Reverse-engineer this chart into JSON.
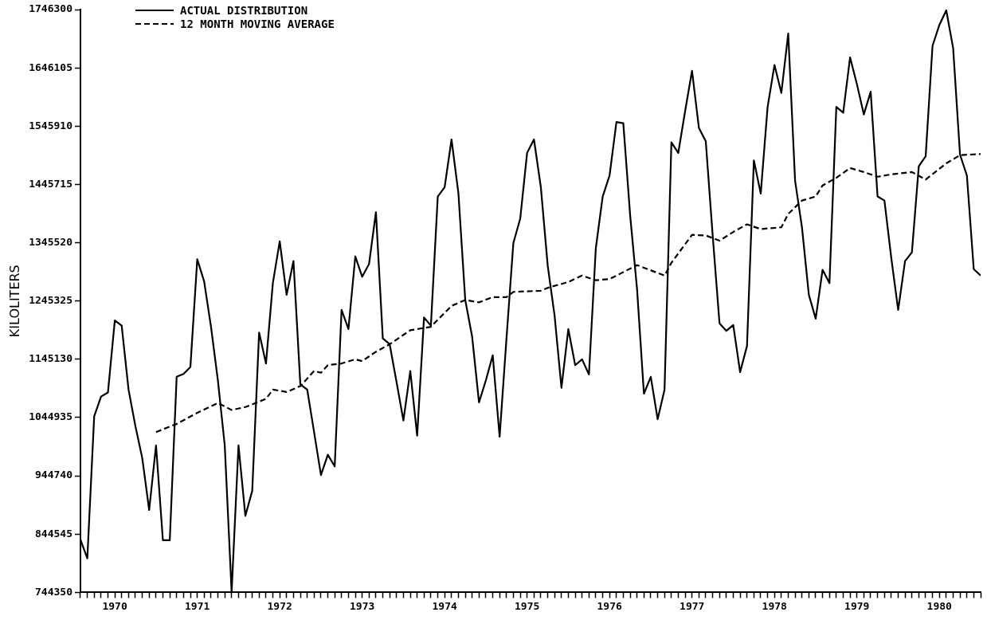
{
  "chart_data": {
    "type": "line",
    "ylabel": "KILOLITERS",
    "marker": "none",
    "grid": false,
    "legend": "top left",
    "xlim": [
      "1970-01",
      "1980-12"
    ],
    "ylim": [
      744350,
      1746300
    ],
    "yticks": [
      744350,
      844545,
      944740,
      1044935,
      1145130,
      1245325,
      1345520,
      1445715,
      1545910,
      1646105,
      1746300
    ],
    "xticks": [
      {
        "value": "1970-01",
        "label": null
      },
      {
        "value": "1970-02",
        "label": null
      },
      {
        "value": "1970-03",
        "label": null
      },
      {
        "value": "1970-04",
        "label": null
      },
      {
        "value": "1970-05",
        "label": null
      },
      {
        "value": "1970-06",
        "label": "1970"
      },
      {
        "value": "1970-07",
        "label": null
      },
      {
        "value": "1970-08",
        "label": null
      },
      {
        "value": "1970-09",
        "label": null
      },
      {
        "value": "1970-10",
        "label": null
      },
      {
        "value": "1970-11",
        "label": null
      },
      {
        "value": "1970-12",
        "label": null
      },
      {
        "value": "1971-01",
        "label": null
      },
      {
        "value": "1971-02",
        "label": null
      },
      {
        "value": "1971-03",
        "label": null
      },
      {
        "value": "1971-04",
        "label": null
      },
      {
        "value": "1971-05",
        "label": null
      },
      {
        "value": "1971-06",
        "label": "1971"
      },
      {
        "value": "1971-07",
        "label": null
      },
      {
        "value": "1971-08",
        "label": null
      },
      {
        "value": "1971-09",
        "label": null
      },
      {
        "value": "1971-10",
        "label": null
      },
      {
        "value": "1971-11",
        "label": null
      },
      {
        "value": "1971-12",
        "label": null
      },
      {
        "value": "1972-01",
        "label": null
      },
      {
        "value": "1972-02",
        "label": null
      },
      {
        "value": "1972-03",
        "label": null
      },
      {
        "value": "1972-04",
        "label": null
      },
      {
        "value": "1972-05",
        "label": null
      },
      {
        "value": "1972-06",
        "label": "1972"
      },
      {
        "value": "1972-07",
        "label": null
      },
      {
        "value": "1972-08",
        "label": null
      },
      {
        "value": "1972-09",
        "label": null
      },
      {
        "value": "1972-10",
        "label": null
      },
      {
        "value": "1972-11",
        "label": null
      },
      {
        "value": "1972-12",
        "label": null
      },
      {
        "value": "1973-01",
        "label": null
      },
      {
        "value": "1973-02",
        "label": null
      },
      {
        "value": "1973-03",
        "label": null
      },
      {
        "value": "1973-04",
        "label": null
      },
      {
        "value": "1973-05",
        "label": null
      },
      {
        "value": "1973-06",
        "label": "1973"
      },
      {
        "value": "1973-07",
        "label": null
      },
      {
        "value": "1973-08",
        "label": null
      },
      {
        "value": "1973-09",
        "label": null
      },
      {
        "value": "1973-10",
        "label": null
      },
      {
        "value": "1973-11",
        "label": null
      },
      {
        "value": "1973-12",
        "label": null
      },
      {
        "value": "1974-01",
        "label": null
      },
      {
        "value": "1974-02",
        "label": null
      },
      {
        "value": "1974-03",
        "label": null
      },
      {
        "value": "1974-04",
        "label": null
      },
      {
        "value": "1974-05",
        "label": null
      },
      {
        "value": "1974-06",
        "label": "1974"
      },
      {
        "value": "1974-07",
        "label": null
      },
      {
        "value": "1974-08",
        "label": null
      },
      {
        "value": "1974-09",
        "label": null
      },
      {
        "value": "1974-10",
        "label": null
      },
      {
        "value": "1974-11",
        "label": null
      },
      {
        "value": "1974-12",
        "label": null
      },
      {
        "value": "1975-01",
        "label": null
      },
      {
        "value": "1975-02",
        "label": null
      },
      {
        "value": "1975-03",
        "label": null
      },
      {
        "value": "1975-04",
        "label": null
      },
      {
        "value": "1975-05",
        "label": null
      },
      {
        "value": "1975-06",
        "label": "1975"
      },
      {
        "value": "1975-07",
        "label": null
      },
      {
        "value": "1975-08",
        "label": null
      },
      {
        "value": "1975-09",
        "label": null
      },
      {
        "value": "1975-10",
        "label": null
      },
      {
        "value": "1975-11",
        "label": null
      },
      {
        "value": "1975-12",
        "label": null
      },
      {
        "value": "1976-01",
        "label": null
      },
      {
        "value": "1976-02",
        "label": null
      },
      {
        "value": "1976-03",
        "label": null
      },
      {
        "value": "1976-04",
        "label": null
      },
      {
        "value": "1976-05",
        "label": null
      },
      {
        "value": "1976-06",
        "label": "1976"
      },
      {
        "value": "1976-07",
        "label": null
      },
      {
        "value": "1976-08",
        "label": null
      },
      {
        "value": "1976-09",
        "label": null
      },
      {
        "value": "1976-10",
        "label": null
      },
      {
        "value": "1976-11",
        "label": null
      },
      {
        "value": "1976-12",
        "label": null
      },
      {
        "value": "1977-01",
        "label": null
      },
      {
        "value": "1977-02",
        "label": null
      },
      {
        "value": "1977-03",
        "label": null
      },
      {
        "value": "1977-04",
        "label": null
      },
      {
        "value": "1977-05",
        "label": null
      },
      {
        "value": "1977-06",
        "label": "1977"
      },
      {
        "value": "1977-07",
        "label": null
      },
      {
        "value": "1977-08",
        "label": null
      },
      {
        "value": "1977-09",
        "label": null
      },
      {
        "value": "1977-10",
        "label": null
      },
      {
        "value": "1977-11",
        "label": null
      },
      {
        "value": "1977-12",
        "label": null
      },
      {
        "value": "1978-01",
        "label": null
      },
      {
        "value": "1978-02",
        "label": null
      },
      {
        "value": "1978-03",
        "label": null
      },
      {
        "value": "1978-04",
        "label": null
      },
      {
        "value": "1978-05",
        "label": null
      },
      {
        "value": "1978-06",
        "label": "1978"
      },
      {
        "value": "1978-07",
        "label": null
      },
      {
        "value": "1978-08",
        "label": null
      },
      {
        "value": "1978-09",
        "label": null
      },
      {
        "value": "1978-10",
        "label": null
      },
      {
        "value": "1978-11",
        "label": null
      },
      {
        "value": "1978-12",
        "label": null
      },
      {
        "value": "1979-01",
        "label": null
      },
      {
        "value": "1979-02",
        "label": null
      },
      {
        "value": "1979-03",
        "label": null
      },
      {
        "value": "1979-04",
        "label": null
      },
      {
        "value": "1979-05",
        "label": null
      },
      {
        "value": "1979-06",
        "label": "1979"
      },
      {
        "value": "1979-07",
        "label": null
      },
      {
        "value": "1979-08",
        "label": null
      },
      {
        "value": "1979-09",
        "label": null
      },
      {
        "value": "1979-10",
        "label": null
      },
      {
        "value": "1979-11",
        "label": null
      },
      {
        "value": "1979-12",
        "label": null
      },
      {
        "value": "1980-01",
        "label": null
      },
      {
        "value": "1980-02",
        "label": null
      },
      {
        "value": "1980-03",
        "label": null
      },
      {
        "value": "1980-04",
        "label": null
      },
      {
        "value": "1980-05",
        "label": null
      },
      {
        "value": "1980-06",
        "label": "1980"
      },
      {
        "value": "1980-07",
        "label": null
      },
      {
        "value": "1980-08",
        "label": null
      },
      {
        "value": "1980-09",
        "label": null
      },
      {
        "value": "1980-10",
        "label": null
      },
      {
        "value": "1980-11",
        "label": null
      },
      {
        "value": "1980-12",
        "label": null
      }
    ],
    "series": [
      {
        "name": "ACTUAL DISTRIBUTION",
        "color": "#000000",
        "line_style": "solid",
        "x": [
          "1970-01",
          "1970-02",
          "1970-03",
          "1970-04",
          "1970-05",
          "1970-06",
          "1970-07",
          "1970-08",
          "1970-09",
          "1970-10",
          "1970-11",
          "1970-12",
          "1971-01",
          "1971-02",
          "1971-03",
          "1971-04",
          "1971-05",
          "1971-06",
          "1971-07",
          "1971-08",
          "1971-09",
          "1971-10",
          "1971-11",
          "1971-12",
          "1972-01",
          "1972-02",
          "1972-03",
          "1972-04",
          "1972-05",
          "1972-06",
          "1972-07",
          "1972-08",
          "1972-09",
          "1972-10",
          "1972-11",
          "1972-12",
          "1973-01",
          "1973-02",
          "1973-03",
          "1973-04",
          "1973-05",
          "1973-06",
          "1973-07",
          "1973-08",
          "1973-09",
          "1973-10",
          "1973-11",
          "1973-12",
          "1974-01",
          "1974-02",
          "1974-03",
          "1974-04",
          "1974-05",
          "1974-06",
          "1974-07",
          "1974-08",
          "1974-09",
          "1974-10",
          "1974-11",
          "1974-12",
          "1975-01",
          "1975-02",
          "1975-03",
          "1975-04",
          "1975-05",
          "1975-06",
          "1975-07",
          "1975-08",
          "1975-09",
          "1975-10",
          "1975-11",
          "1975-12",
          "1976-01",
          "1976-02",
          "1976-03",
          "1976-04",
          "1976-05",
          "1976-06",
          "1976-07",
          "1976-08",
          "1976-09",
          "1976-10",
          "1976-11",
          "1976-12",
          "1977-01",
          "1977-02",
          "1977-03",
          "1977-04",
          "1977-05",
          "1977-06",
          "1977-07",
          "1977-08",
          "1977-09",
          "1977-10",
          "1977-11",
          "1977-12",
          "1978-01",
          "1978-02",
          "1978-03",
          "1978-04",
          "1978-05",
          "1978-06",
          "1978-07",
          "1978-08",
          "1978-09",
          "1978-10",
          "1978-11",
          "1978-12",
          "1979-01",
          "1979-02",
          "1979-03",
          "1979-04",
          "1979-05",
          "1979-06",
          "1979-07",
          "1979-08",
          "1979-09",
          "1979-10",
          "1979-11",
          "1979-12",
          "1980-01",
          "1980-02",
          "1980-03",
          "1980-04",
          "1980-05",
          "1980-06",
          "1980-07",
          "1980-08",
          "1980-09",
          "1980-10",
          "1980-11",
          "1980-12"
        ],
        "values": [
          835000,
          803000,
          1047000,
          1081000,
          1088000,
          1212000,
          1203000,
          1093000,
          1030000,
          975000,
          886000,
          997000,
          834000,
          834000,
          1115000,
          1120000,
          1132000,
          1317000,
          1279000,
          1201000,
          1109000,
          997000,
          745000,
          997000,
          876000,
          919000,
          1191000,
          1138000,
          1276000,
          1348000,
          1256000,
          1314000,
          1102000,
          1093000,
          1020000,
          946000,
          981000,
          961000,
          1230000,
          1197000,
          1322000,
          1287000,
          1309000,
          1398000,
          1181000,
          1171000,
          1106000,
          1040000,
          1125000,
          1014000,
          1217000,
          1203000,
          1425000,
          1441000,
          1523000,
          1431000,
          1247000,
          1184000,
          1071000,
          1109000,
          1152000,
          1012000,
          1181000,
          1345000,
          1387000,
          1500000,
          1523000,
          1441000,
          1306000,
          1220000,
          1096000,
          1197000,
          1135000,
          1145000,
          1119000,
          1336000,
          1425000,
          1461000,
          1553000,
          1551000,
          1392000,
          1266000,
          1086000,
          1115000,
          1042000,
          1093000,
          1518000,
          1500000,
          1572000,
          1641000,
          1543000,
          1520000,
          1359000,
          1207000,
          1194000,
          1204000,
          1123000,
          1168000,
          1487000,
          1430000,
          1579000,
          1651000,
          1603000,
          1705000,
          1452000,
          1372000,
          1256000,
          1215000,
          1299000,
          1276000,
          1579000,
          1569000,
          1664000,
          1618000,
          1566000,
          1605000,
          1425000,
          1418000,
          1319000,
          1230000,
          1314000,
          1329000,
          1477000,
          1494000,
          1684000,
          1720000,
          1745000,
          1680000,
          1497000,
          1461000,
          1300000,
          1289000
        ]
      },
      {
        "name": "12 MONTH MOVING AVERAGE",
        "color": "#000000",
        "line_style": "dashed",
        "x": [
          "1970-12",
          "1971-03",
          "1971-06",
          "1971-09",
          "1971-11",
          "1972-01",
          "1972-04",
          "1972-05",
          "1972-07",
          "1972-09",
          "1972-11",
          "1972-12",
          "1973-01",
          "1973-03",
          "1973-05",
          "1973-06",
          "1973-08",
          "1973-10",
          "1974-01",
          "1974-04",
          "1974-07",
          "1974-09",
          "1974-11",
          "1975-01",
          "1975-03",
          "1975-04",
          "1975-08",
          "1975-09",
          "1975-12",
          "1976-02",
          "1976-04",
          "1976-06",
          "1976-10",
          "1977-02",
          "1977-03",
          "1977-06",
          "1977-08",
          "1977-10",
          "1977-12",
          "1978-02",
          "1978-04",
          "1978-07",
          "1978-08",
          "1978-10",
          "1978-12",
          "1979-01",
          "1979-03",
          "1979-05",
          "1979-07",
          "1979-09",
          "1979-11",
          "1980-02",
          "1980-04",
          "1980-07",
          "1980-09",
          "1980-12"
        ],
        "values": [
          1020000,
          1034000,
          1053000,
          1070000,
          1058000,
          1063000,
          1077000,
          1093000,
          1089000,
          1099000,
          1125000,
          1122000,
          1135000,
          1138000,
          1145000,
          1142000,
          1158000,
          1171000,
          1195000,
          1201000,
          1237000,
          1247000,
          1243000,
          1252000,
          1252000,
          1261000,
          1263000,
          1268000,
          1278000,
          1289000,
          1281000,
          1283000,
          1307000,
          1289000,
          1311000,
          1359000,
          1358000,
          1349000,
          1364000,
          1377000,
          1369000,
          1372000,
          1395000,
          1418000,
          1425000,
          1444000,
          1457000,
          1474000,
          1467000,
          1459000,
          1463000,
          1467000,
          1454000,
          1482000,
          1496000,
          1498000
        ]
      }
    ]
  }
}
